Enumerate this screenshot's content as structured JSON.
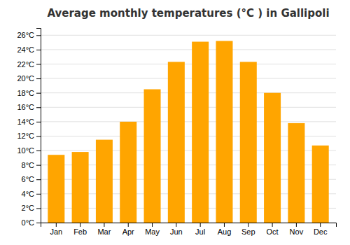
{
  "chart_data": {
    "type": "bar",
    "title": "Average monthly temperatures (°C ) in Gallipoli",
    "categories": [
      "Jan",
      "Feb",
      "Mar",
      "Apr",
      "May",
      "Jun",
      "Jul",
      "Aug",
      "Sep",
      "Oct",
      "Nov",
      "Dec"
    ],
    "values": [
      9.4,
      9.8,
      11.5,
      14.0,
      18.5,
      22.3,
      25.1,
      25.2,
      22.3,
      18.0,
      13.8,
      10.7
    ],
    "color": "#FFA500",
    "ylim": [
      0,
      27
    ],
    "yticks": [
      {
        "value": 0,
        "label": "0°C"
      },
      {
        "value": 2,
        "label": "2°C"
      },
      {
        "value": 4,
        "label": "4°C"
      },
      {
        "value": 6,
        "label": "6°C"
      },
      {
        "value": 8,
        "label": "8°C"
      },
      {
        "value": 10,
        "label": "10°C"
      },
      {
        "value": 12,
        "label": "12°C"
      },
      {
        "value": 14,
        "label": "14°C"
      },
      {
        "value": 16,
        "label": "16°C"
      },
      {
        "value": 18,
        "label": "18°C"
      },
      {
        "value": 20,
        "label": "20°C"
      },
      {
        "value": 22,
        "label": "22°C"
      },
      {
        "value": 24,
        "label": "24°C"
      },
      {
        "value": 26,
        "label": "26°C"
      }
    ],
    "grid": true
  }
}
